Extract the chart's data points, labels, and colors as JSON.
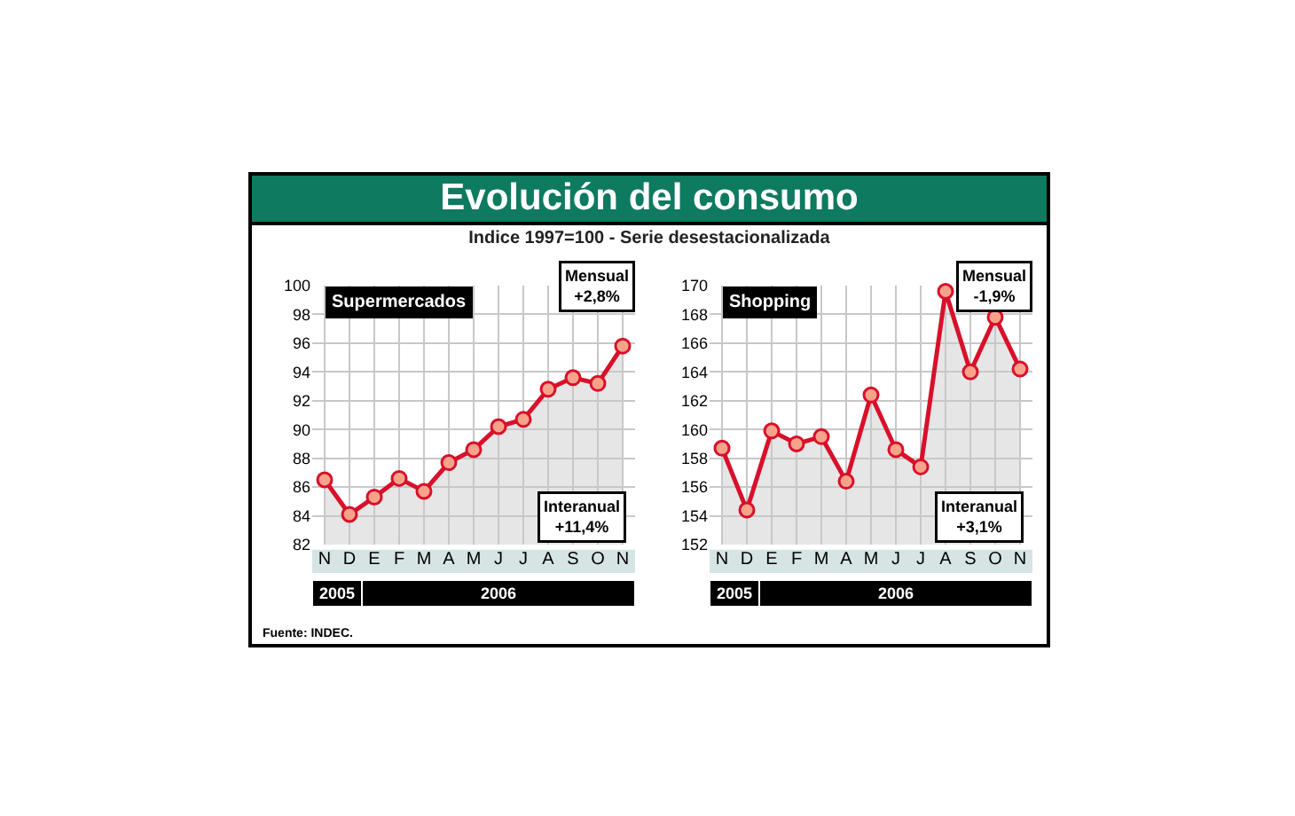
{
  "chart_data": [
    {
      "type": "other",
      "title": "Evolución del consumo",
      "subtitle": "Indice 1997=100 - Serie desestacionalizada",
      "annotations": [
        "Fuente: INDEC."
      ]
    },
    {
      "type": "area",
      "title": "Supermercados",
      "categories": [
        "N",
        "D",
        "E",
        "F",
        "M",
        "A",
        "M",
        "J",
        "J",
        "A",
        "S",
        "O",
        "N"
      ],
      "series": [
        {
          "color": "#d9102a",
          "values": [
            86.5,
            84.1,
            85.3,
            86.6,
            85.7,
            87.7,
            88.6,
            90.2,
            90.7,
            92.8,
            93.6,
            93.2,
            95.8
          ]
        }
      ],
      "ylim": [
        82,
        100
      ],
      "yticks": [
        82,
        84,
        86,
        88,
        90,
        92,
        94,
        96,
        98,
        100
      ],
      "grid": true,
      "marker": "circle",
      "annotations": [
        "Mensual\n+2,8%",
        "Interanual\n+11,4%",
        "2005",
        "2006"
      ]
    },
    {
      "type": "area",
      "title": "Shopping",
      "categories": [
        "N",
        "D",
        "E",
        "F",
        "M",
        "A",
        "M",
        "J",
        "J",
        "A",
        "S",
        "O",
        "N"
      ],
      "series": [
        {
          "color": "#d9102a",
          "values": [
            158.7,
            154.4,
            159.9,
            159.0,
            159.5,
            156.4,
            162.4,
            158.6,
            157.4,
            169.6,
            164.0,
            167.8,
            164.2
          ]
        }
      ],
      "ylim": [
        152,
        170
      ],
      "yticks": [
        152,
        154,
        156,
        158,
        160,
        162,
        164,
        166,
        168,
        170
      ],
      "grid": true,
      "marker": "circle",
      "annotations": [
        "Mensual\n-1,9%",
        "Interanual\n+3,1%",
        "2005",
        "2006"
      ]
    }
  ]
}
